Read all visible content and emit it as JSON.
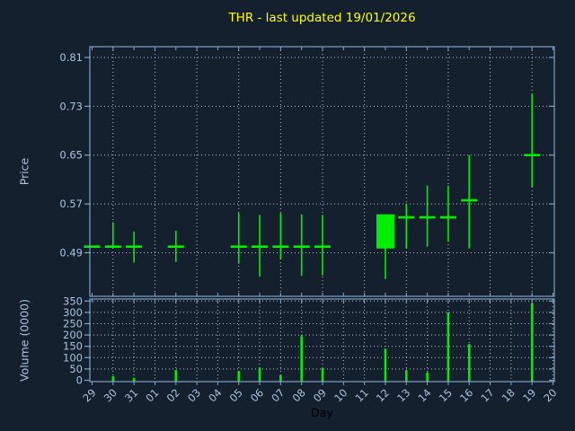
{
  "title": "THR - last updated 19/01/2026",
  "colors": {
    "background": "#15202e",
    "candle_green": "#00ee00",
    "spine_blue": "#7fa3c8",
    "tick_label_blue": "#a9c2e0",
    "grid_gray": "#b9c0c9",
    "title_yellow": "#ffff00",
    "day_label_black": "#000000"
  },
  "chart_data": {
    "type": "candlestick",
    "title": "THR - last updated 19/01/2026",
    "xlabel": "Day",
    "ylabel_price": "Price",
    "ylabel_volume": "Volume (0000)",
    "legend": "none",
    "grid": "dotted",
    "price_ticks": [
      0.49,
      0.57,
      0.65,
      0.73,
      0.81
    ],
    "price_ylim": [
      0.414,
      0.828
    ],
    "volume_ticks": [
      0,
      50,
      100,
      150,
      200,
      250,
      300,
      350
    ],
    "volume_ylim": [
      0,
      365
    ],
    "days": [
      "29",
      "30",
      "31",
      "01",
      "02",
      "03",
      "04",
      "05",
      "06",
      "07",
      "08",
      "09",
      "10",
      "11",
      "12",
      "13",
      "14",
      "15",
      "16",
      "17",
      "18",
      "19",
      "20"
    ],
    "candles": [
      {
        "day": "29",
        "ohlc": [
          0.5,
          0.5,
          0.5,
          0.5
        ],
        "volume": 0
      },
      {
        "day": "30",
        "ohlc": [
          0.5,
          0.54,
          0.5,
          0.5
        ],
        "volume": 18
      },
      {
        "day": "31",
        "ohlc": [
          0.5,
          0.525,
          0.474,
          0.5
        ],
        "volume": 10
      },
      {
        "day": "01",
        "ohlc": null,
        "volume": 0
      },
      {
        "day": "02",
        "ohlc": [
          0.5,
          0.526,
          0.475,
          0.5
        ],
        "volume": 45
      },
      {
        "day": "03",
        "ohlc": null,
        "volume": 0
      },
      {
        "day": "04",
        "ohlc": null,
        "volume": 0
      },
      {
        "day": "05",
        "ohlc": [
          0.5,
          0.555,
          0.472,
          0.5
        ],
        "volume": 40
      },
      {
        "day": "06",
        "ohlc": [
          0.5,
          0.552,
          0.451,
          0.5
        ],
        "volume": 55
      },
      {
        "day": "07",
        "ohlc": [
          0.5,
          0.555,
          0.48,
          0.5
        ],
        "volume": 22
      },
      {
        "day": "08",
        "ohlc": [
          0.5,
          0.553,
          0.452,
          0.5
        ],
        "volume": 195
      },
      {
        "day": "09",
        "ohlc": [
          0.5,
          0.552,
          0.453,
          0.5
        ],
        "volume": 53
      },
      {
        "day": "10",
        "ohlc": null,
        "volume": 0
      },
      {
        "day": "11",
        "ohlc": null,
        "volume": 0
      },
      {
        "day": "12",
        "ohlc": [
          0.497,
          0.553,
          0.447,
          0.553
        ],
        "volume": 140
      },
      {
        "day": "13",
        "ohlc": [
          0.548,
          0.57,
          0.497,
          0.548
        ],
        "volume": 45
      },
      {
        "day": "14",
        "ohlc": [
          0.548,
          0.6,
          0.5,
          0.548
        ],
        "volume": 35
      },
      {
        "day": "15",
        "ohlc": [
          0.548,
          0.6,
          0.508,
          0.548
        ],
        "volume": 300
      },
      {
        "day": "16",
        "ohlc": [
          0.576,
          0.65,
          0.497,
          0.576
        ],
        "volume": 160
      },
      {
        "day": "17",
        "ohlc": null,
        "volume": 0
      },
      {
        "day": "18",
        "ohlc": null,
        "volume": 0
      },
      {
        "day": "19",
        "ohlc": [
          0.65,
          0.75,
          0.598,
          0.65
        ],
        "volume": 340
      },
      {
        "day": "20",
        "ohlc": null,
        "volume": 0
      }
    ]
  }
}
